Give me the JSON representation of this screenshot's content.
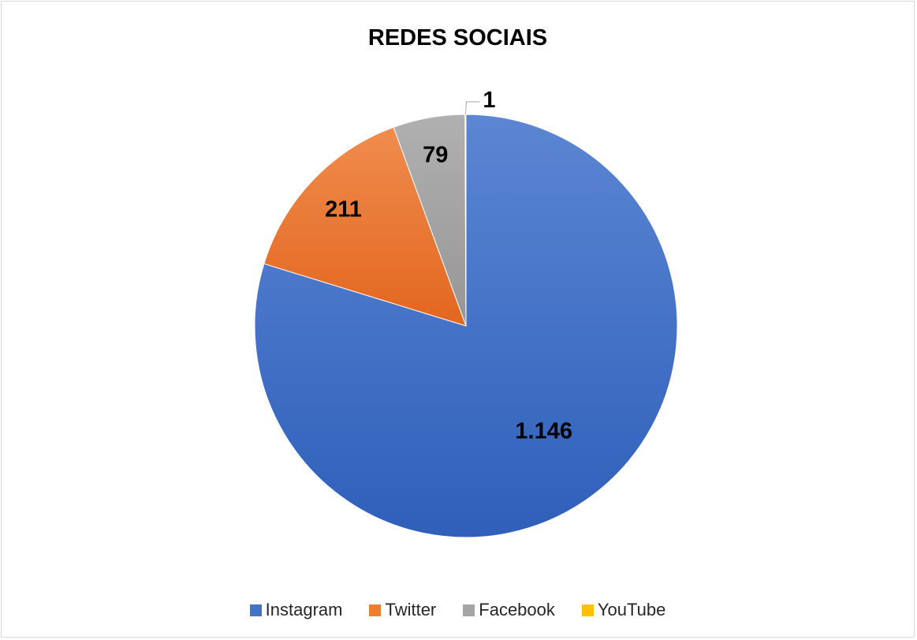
{
  "chart_data": {
    "type": "pie",
    "title": "REDES SOCIAIS",
    "categories": [
      "Instagram",
      "Twitter",
      "Facebook",
      "YouTube"
    ],
    "values": [
      1146,
      211,
      79,
      1
    ],
    "data_labels": [
      "1.146",
      "211",
      "79",
      "1"
    ],
    "colors": [
      "#4472c4",
      "#ed7d31",
      "#a5a5a5",
      "#ffc000"
    ],
    "legend_position": "bottom",
    "start_angle": "12 o'clock",
    "direction": "clockwise"
  }
}
